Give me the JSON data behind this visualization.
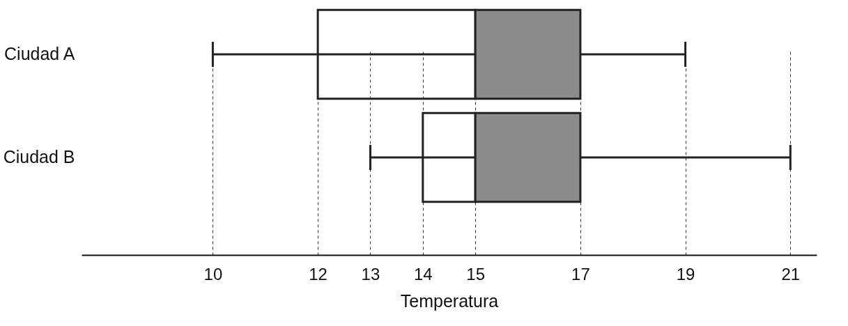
{
  "chart_data": {
    "type": "box",
    "orientation": "horizontal",
    "xlabel": "Temperatura",
    "categories": [
      "Ciudad A",
      "Ciudad B"
    ],
    "series": [
      {
        "color": "#8c8c8c",
        "boxes": [
          {
            "low": 10,
            "q1": 12,
            "median": 15,
            "q3": 17,
            "high": 19
          },
          {
            "low": 13,
            "q1": 14,
            "median": 15,
            "q3": 17,
            "high": 21
          }
        ]
      }
    ],
    "xlim": [
      7.5,
      21.5
    ],
    "xticks": [
      10,
      12,
      13,
      14,
      15,
      17,
      19,
      21
    ],
    "grid": "x",
    "line_style": "dashed"
  }
}
